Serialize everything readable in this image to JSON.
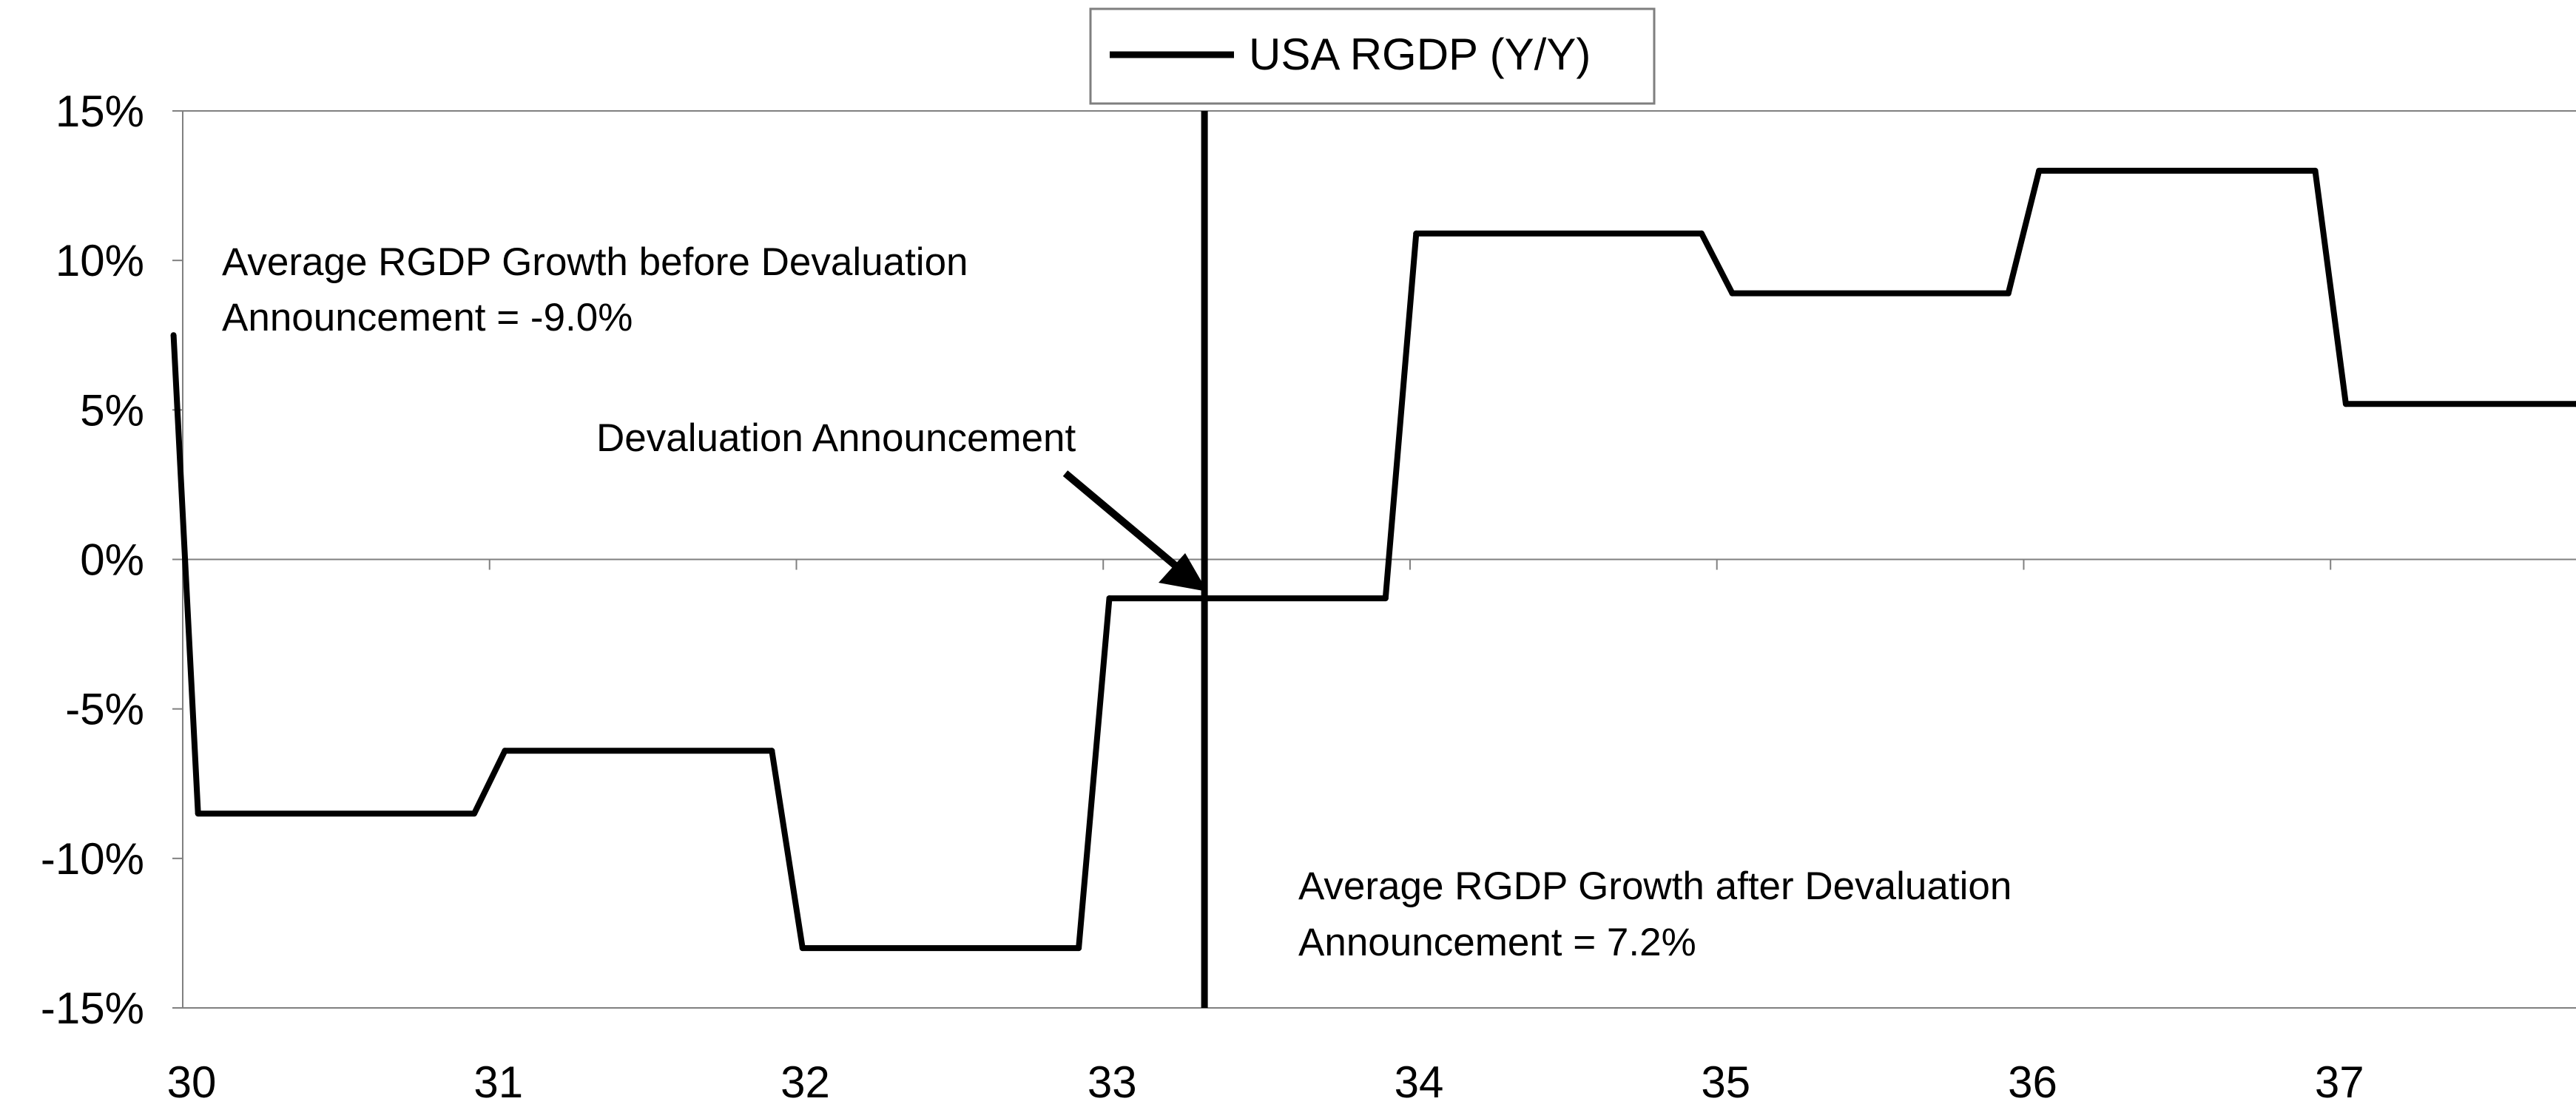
{
  "chart_data": {
    "type": "line",
    "x_ticks": [
      "30",
      "31",
      "32",
      "33",
      "34",
      "35",
      "36",
      "37"
    ],
    "y_ticks": [
      "15%",
      "10%",
      "5%",
      "0%",
      "-5%",
      "-10%",
      "-15%"
    ],
    "xlim": [
      30,
      37.8
    ],
    "ylim": [
      -15,
      15
    ],
    "series": [
      {
        "name": "USA RGDP (Y/Y)",
        "color": "#000000",
        "points": [
          [
            29.97,
            7.5
          ],
          [
            30.05,
            -8.5
          ],
          [
            30.95,
            -8.5
          ],
          [
            31.05,
            -6.4
          ],
          [
            31.92,
            -6.4
          ],
          [
            32.02,
            -13.0
          ],
          [
            32.92,
            -13.0
          ],
          [
            33.02,
            -1.3
          ],
          [
            33.92,
            -1.3
          ],
          [
            34.02,
            10.9
          ],
          [
            34.95,
            10.9
          ],
          [
            35.05,
            8.9
          ],
          [
            35.95,
            8.9
          ],
          [
            36.05,
            13.0
          ],
          [
            36.95,
            13.0
          ],
          [
            37.05,
            5.2
          ],
          [
            37.8,
            5.2
          ]
        ]
      }
    ],
    "legend": {
      "label": "USA RGDP (Y/Y)",
      "placement": "top-center"
    },
    "vertical_line": {
      "x": 33.33,
      "label": "Devaluation Announcement"
    },
    "annotations": [
      {
        "line1": "Average RGDP Growth before Devaluation",
        "line2": "Announcement = -9.0%"
      },
      {
        "line1": "Average RGDP Growth after Devaluation",
        "line2": "Announcement = 7.2%"
      }
    ],
    "grid": false
  }
}
